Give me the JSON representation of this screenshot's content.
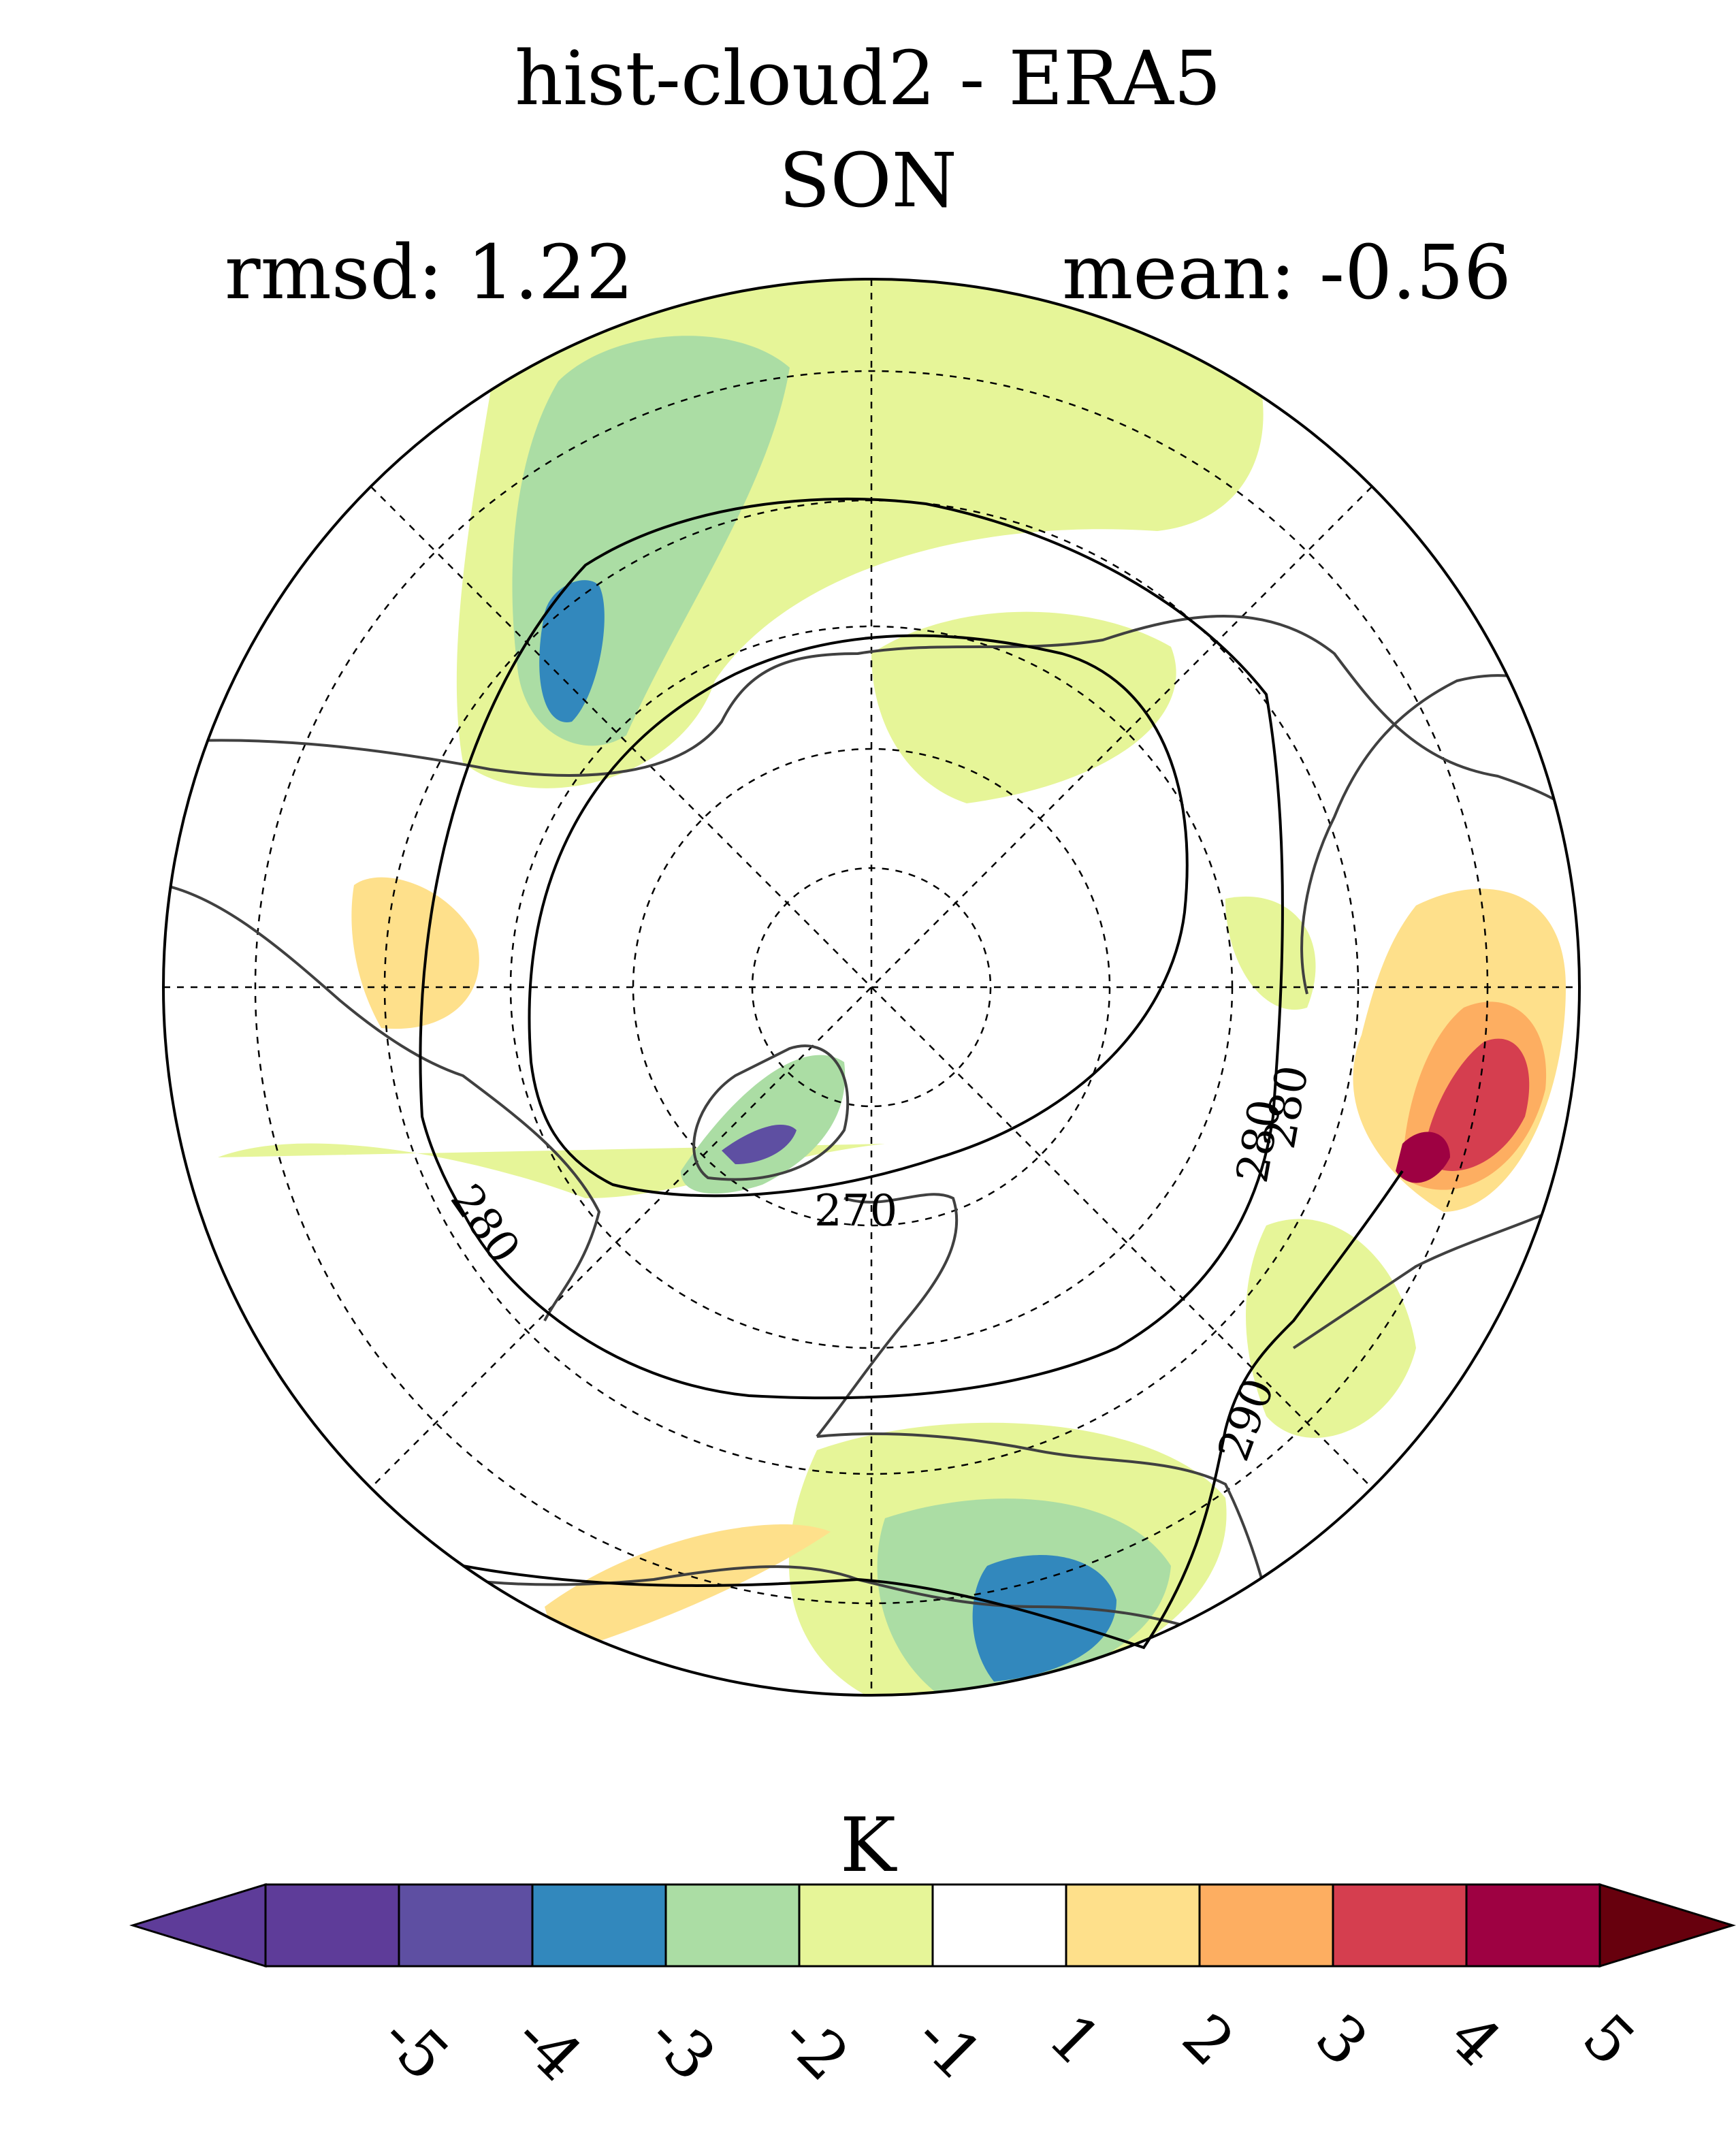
{
  "figure": {
    "title_line1": "hist-cloud2 - ERA5",
    "title_line2": "SON",
    "rmsd_label": "rmsd: 1.22",
    "mean_label": "mean: -0.56"
  },
  "map": {
    "projection": "north-polar-stereographic",
    "contour_labels": [
      "280",
      "280",
      "270",
      "280",
      "290"
    ],
    "colors": {
      "coast": "#404040",
      "contour": "#000000",
      "grid": "#000000"
    }
  },
  "colorbar": {
    "units": "K",
    "tick_labels": [
      "-5",
      "-4",
      "-3",
      "-2",
      "-1",
      "1",
      "2",
      "3",
      "4",
      "5"
    ],
    "colors": [
      "#5e3c99",
      "#5e4fa2",
      "#3288bd",
      "#abdda4",
      "#e6f598",
      "#ffffff",
      "#fee08b",
      "#fdae61",
      "#d53e4f",
      "#9e0142"
    ],
    "extend_low_color": "#5e3c99",
    "extend_high_color": "#67000d"
  }
}
